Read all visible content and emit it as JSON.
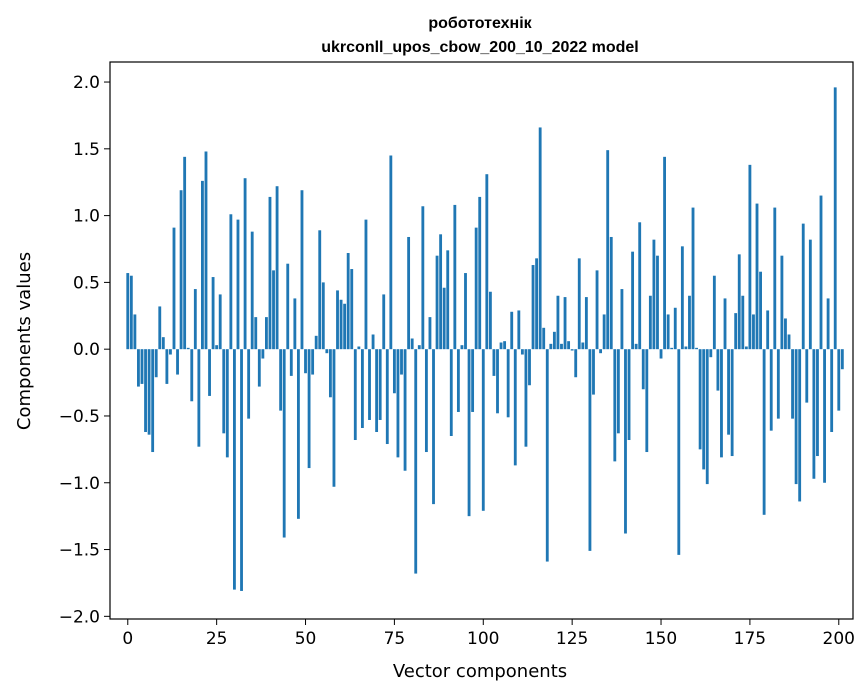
{
  "chart_data": {
    "type": "bar",
    "title_line1": "робототехнік",
    "title_line2": "ukrconll_upos_cbow_200_10_2022 model",
    "xlabel": "Vector components",
    "ylabel": "Components values",
    "xlim": [
      -5,
      204
    ],
    "ylim": [
      -2.02,
      2.15
    ],
    "xticks": [
      0,
      25,
      50,
      75,
      100,
      125,
      150,
      175,
      200
    ],
    "yticks": [
      -2.0,
      -1.5,
      -1.0,
      -0.5,
      0.0,
      0.5,
      1.0,
      1.5,
      2.0
    ],
    "ytick_labels": [
      "−2.0",
      "−1.5",
      "−1.0",
      "−0.5",
      "0.0",
      "0.5",
      "1.0",
      "1.5",
      "2.0"
    ],
    "bar_color": "#1f77b4",
    "values": [
      0.57,
      0.55,
      0.26,
      -0.28,
      -0.26,
      -0.62,
      -0.64,
      -0.77,
      -0.21,
      0.32,
      0.09,
      -0.26,
      -0.04,
      0.91,
      -0.19,
      1.19,
      1.44,
      0.01,
      -0.39,
      0.45,
      -0.73,
      1.26,
      1.48,
      -0.35,
      0.54,
      0.03,
      0.41,
      -0.63,
      -0.81,
      1.01,
      -1.8,
      0.97,
      -1.81,
      1.28,
      -0.52,
      0.88,
      0.24,
      -0.28,
      -0.07,
      0.24,
      1.14,
      0.59,
      1.22,
      -0.46,
      -1.41,
      0.64,
      -0.2,
      0.38,
      -1.27,
      1.19,
      -0.18,
      -0.89,
      -0.19,
      0.1,
      0.89,
      0.5,
      -0.03,
      -0.36,
      -1.03,
      0.44,
      0.37,
      0.34,
      0.72,
      0.6,
      -0.68,
      0.02,
      -0.59,
      0.97,
      -0.53,
      0.11,
      -0.62,
      -0.53,
      0.41,
      -0.71,
      1.45,
      -0.33,
      -0.81,
      -0.19,
      -0.91,
      0.84,
      0.08,
      -1.68,
      0.03,
      1.07,
      -0.77,
      0.24,
      -1.16,
      0.7,
      0.86,
      0.46,
      0.74,
      -0.65,
      1.08,
      -0.47,
      0.03,
      0.57,
      -1.25,
      -0.47,
      0.91,
      1.14,
      -1.21,
      1.31,
      0.43,
      -0.2,
      -0.48,
      0.05,
      0.06,
      -0.51,
      0.28,
      -0.87,
      0.29,
      -0.04,
      -0.73,
      -0.27,
      0.63,
      0.68,
      1.66,
      0.16,
      -1.59,
      0.04,
      0.13,
      0.4,
      0.04,
      0.39,
      0.06,
      -0.01,
      -0.21,
      0.68,
      0.05,
      0.39,
      -1.51,
      -0.34,
      0.59,
      -0.03,
      0.26,
      1.49,
      0.84,
      -0.84,
      -0.63,
      0.45,
      -1.38,
      -0.68,
      0.73,
      0.04,
      0.95,
      -0.3,
      -0.77,
      0.4,
      0.82,
      0.7,
      -0.07,
      1.44,
      0.26,
      0.01,
      0.31,
      -1.54,
      0.77,
      0.02,
      0.4,
      1.06,
      0.01,
      -0.75,
      -0.9,
      -1.01,
      -0.06,
      0.55,
      -0.31,
      -0.81,
      0.38,
      -0.64,
      -0.8,
      0.27,
      0.71,
      0.4,
      0.02,
      1.38,
      0.26,
      1.09,
      0.58,
      -1.24,
      0.29,
      -0.61,
      1.06,
      -0.52,
      0.7,
      0.23,
      0.11,
      -0.52,
      -1.01,
      -1.14,
      0.94,
      -0.4,
      0.82,
      -0.97,
      -0.8,
      1.15,
      -1.0,
      0.38,
      -0.62,
      1.96,
      -0.46,
      -0.15
    ]
  }
}
